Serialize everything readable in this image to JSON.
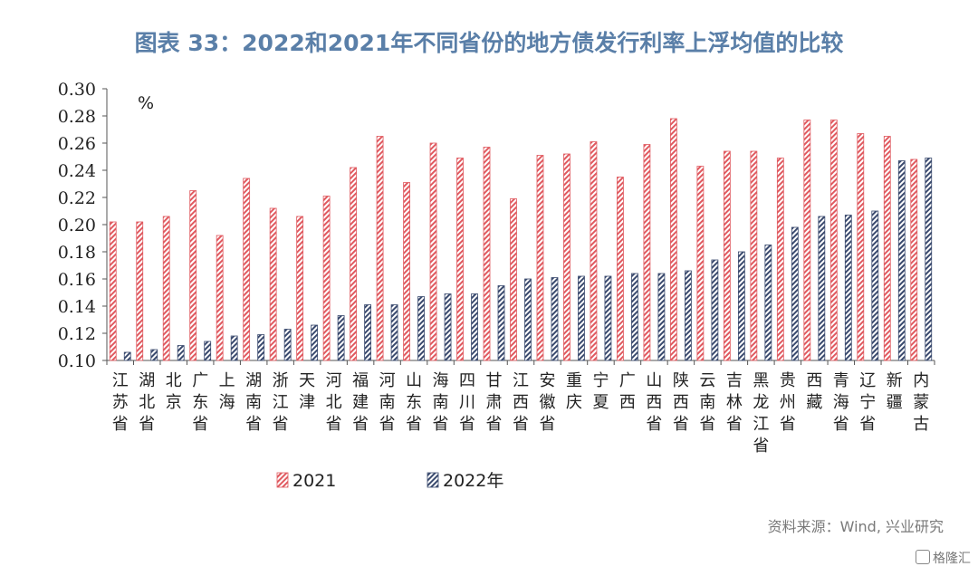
{
  "chart_data": {
    "type": "bar",
    "title": "图表 33：2022和2021年不同省份的地方债发行利率上浮均值的比较",
    "unit": "%",
    "ylim": [
      0.1,
      0.3
    ],
    "yticks": [
      "0.30",
      "0.28",
      "0.26",
      "0.24",
      "0.22",
      "0.20",
      "0.18",
      "0.16",
      "0.14",
      "0.12",
      "0.10"
    ],
    "categories": [
      "江苏省",
      "湖北省",
      "北京",
      "广东省",
      "上海",
      "湖南省",
      "浙江省",
      "天津",
      "河北省",
      "福建省",
      "河南省",
      "山东省",
      "海南省",
      "四川省",
      "甘肃省",
      "江西省",
      "安徽省",
      "重庆",
      "宁夏",
      "广西",
      "山西省",
      "陕西省",
      "云南省",
      "吉林省",
      "黑龙江省",
      "贵州省",
      "西藏",
      "青海省",
      "辽宁省",
      "新疆",
      "内蒙古"
    ],
    "series": [
      {
        "name": "2021",
        "color": "#e05a60",
        "values": [
          0.202,
          0.202,
          0.206,
          0.225,
          0.192,
          0.234,
          0.212,
          0.206,
          0.221,
          0.242,
          0.265,
          0.231,
          0.26,
          0.249,
          0.257,
          0.219,
          0.251,
          0.252,
          0.261,
          0.235,
          0.259,
          0.278,
          0.243,
          0.254,
          0.254,
          0.249,
          0.277,
          0.277,
          0.267,
          0.265,
          0.248
        ]
      },
      {
        "name": "2022年",
        "color": "#3a4a6e",
        "values": [
          0.106,
          0.108,
          0.111,
          0.114,
          0.118,
          0.119,
          0.123,
          0.126,
          0.133,
          0.141,
          0.141,
          0.147,
          0.149,
          0.149,
          0.155,
          0.16,
          0.161,
          0.162,
          0.162,
          0.164,
          0.164,
          0.166,
          0.174,
          0.18,
          0.185,
          0.198,
          0.206,
          0.207,
          0.21,
          0.247,
          0.249
        ]
      }
    ],
    "legend_position": "bottom"
  },
  "source": "资料来源：Wind, 兴业研究",
  "brand": "格隆汇"
}
